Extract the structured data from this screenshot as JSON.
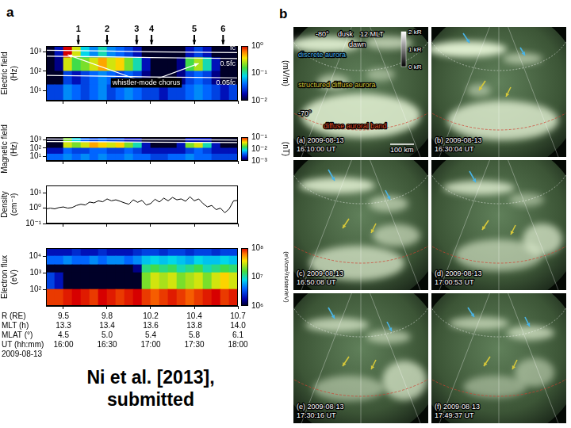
{
  "chart_data": [
    {
      "type": "spectrogram",
      "ylabel": [
        "Electric field",
        "(Hz)"
      ],
      "log": "y",
      "grid": false,
      "tick_labels": "y",
      "xlim": [
        15.8,
        18.0
      ],
      "xticks": [
        16,
        16.5,
        17,
        17.5,
        18
      ],
      "ylim": [
        3,
        2000
      ],
      "yticks": [
        {
          "value": 10,
          "label": "10¹"
        },
        {
          "value": 100,
          "label": "10²"
        },
        {
          "value": 1000,
          "label": "10³"
        }
      ],
      "x_edges": [
        15.8,
        15.9,
        16.0,
        16.1,
        16.2,
        16.3,
        16.4,
        16.5,
        16.6,
        16.7,
        16.8,
        16.9,
        17.0,
        17.1,
        17.2,
        17.3,
        17.4,
        17.5,
        17.6,
        17.7,
        17.8,
        17.9,
        18.0
      ],
      "y_edges": [
        3,
        20,
        100,
        500,
        2000
      ],
      "cells": [
        [
          0.03,
          0.03,
          0.05,
          0.04,
          0.03,
          0.04,
          0.05,
          0.03,
          0.04,
          0.05,
          0.04,
          0.03,
          0.03,
          0.02,
          0.03,
          0.03,
          0.04,
          0.05,
          0.04,
          0.03,
          0.02,
          0.03
        ],
        [
          0.01,
          0.01,
          0.03,
          0.02,
          0.03,
          0.04,
          0.05,
          0.04,
          0.03,
          0.04,
          0.03,
          0.015,
          0.01,
          0.01,
          0.01,
          0.015,
          0.03,
          0.04,
          0.03,
          0.015,
          0.01,
          0.01
        ],
        [
          0.01,
          0.015,
          0.3,
          0.15,
          0.2,
          0.3,
          0.5,
          0.3,
          0.4,
          0.2,
          0.1,
          0.02,
          0.01,
          0.01,
          0.01,
          0.015,
          0.15,
          0.25,
          0.1,
          0.02,
          0.01,
          0.01
        ],
        [
          0.01,
          0.02,
          1,
          0.3,
          0.08,
          0.05,
          0.1,
          0.05,
          0.04,
          0.03,
          0.02,
          0.01,
          0.01,
          0.01,
          0.01,
          0.01,
          0.02,
          0.03,
          0.02,
          0.01,
          0.01,
          0.01
        ]
      ],
      "colorbar": {
        "label": "(mV/m)",
        "lim": [
          0.01,
          1
        ],
        "ticks": [
          {
            "value": 0.01,
            "label": "10⁻²"
          },
          {
            "value": 0.1,
            "label": "10⁻¹"
          },
          {
            "value": 1,
            "label": "10⁰"
          }
        ]
      },
      "lines": [
        {
          "name": "fc",
          "color": "#ffffff",
          "x": [
            15.8,
            16.5,
            17.0,
            17.5,
            18.0
          ],
          "values": [
            1200,
            1100,
            1000,
            950,
            900
          ]
        },
        {
          "name": "0.5fc",
          "color": "#ffffff",
          "x": [
            15.8,
            16.5,
            17.0,
            17.5,
            18.0
          ],
          "values": [
            600,
            550,
            500,
            475,
            450
          ]
        },
        {
          "name": "0.05fc",
          "color": "#ffffff",
          "x": [
            15.8,
            16.5,
            17.0,
            17.5,
            18.0
          ],
          "values": [
            60,
            55,
            50,
            47.5,
            45
          ]
        }
      ],
      "annotations": [
        {
          "text": "whistler-mode chorus",
          "x": 16.95,
          "y": 25,
          "color": "#ffffff",
          "arrows": [
            {
              "x": 16.05,
              "y": 700
            },
            {
              "x": 17.55,
              "y": 250
            }
          ]
        }
      ]
    },
    {
      "type": "spectrogram",
      "ylabel": [
        "Magnetic field",
        "(Hz)"
      ],
      "log": "y",
      "grid": false,
      "tick_labels": "y",
      "xlim": [
        15.8,
        18.0
      ],
      "xticks": [
        16,
        16.5,
        17,
        17.5,
        18
      ],
      "ylim": [
        3,
        2000
      ],
      "yticks": [
        {
          "value": 10,
          "label": "10¹"
        },
        {
          "value": 100,
          "label": "10²"
        },
        {
          "value": 1000,
          "label": "10³"
        }
      ],
      "x_edges": [
        15.8,
        15.9,
        16.0,
        16.1,
        16.2,
        16.3,
        16.4,
        16.5,
        16.6,
        16.7,
        16.8,
        16.9,
        17.0,
        17.1,
        17.2,
        17.3,
        17.4,
        17.5,
        17.6,
        17.7,
        17.8,
        17.9,
        18.0
      ],
      "y_edges": [
        3,
        20,
        100,
        500,
        2000
      ],
      "cells": [
        [
          0.004,
          0.004,
          0.005,
          0.004,
          0.005,
          0.004,
          0.005,
          0.004,
          0.004,
          0.005,
          0.004,
          0.004,
          0.003,
          0.003,
          0.004,
          0.004,
          0.005,
          0.004,
          0.004,
          0.003,
          0.003,
          0.003
        ],
        [
          0.002,
          0.002,
          0.004,
          0.003,
          0.003,
          0.004,
          0.004,
          0.003,
          0.003,
          0.004,
          0.003,
          0.002,
          0.002,
          0.002,
          0.002,
          0.002,
          0.003,
          0.004,
          0.003,
          0.002,
          0.002,
          0.002
        ],
        [
          0.001,
          0.001,
          0.03,
          0.02,
          0.03,
          0.05,
          0.04,
          0.03,
          0.04,
          0.02,
          0.01,
          0.002,
          0.001,
          0.001,
          0.001,
          0.002,
          0.02,
          0.03,
          0.01,
          0.002,
          0.001,
          0.001
        ],
        [
          0.001,
          0.001,
          0.02,
          0.008,
          0.004,
          0.003,
          0.004,
          0.003,
          0.003,
          0.002,
          0.002,
          0.001,
          0.001,
          0.001,
          0.001,
          0.001,
          0.002,
          0.002,
          0.002,
          0.001,
          0.001,
          0.001
        ]
      ],
      "colorbar": {
        "label": "(nT)",
        "lim": [
          0.001,
          0.1
        ],
        "ticks": [
          {
            "value": 0.001,
            "label": "10⁻³"
          },
          {
            "value": 0.01,
            "label": "10⁻²"
          },
          {
            "value": 0.1,
            "label": "10⁻¹"
          }
        ]
      },
      "lines": [
        {
          "color": "#ffffff",
          "x": [
            15.8,
            16.5,
            17.0,
            17.5,
            18.0
          ],
          "values": [
            1200,
            1100,
            1000,
            950,
            900
          ]
        },
        {
          "color": "#ffffff",
          "x": [
            15.8,
            16.5,
            17.0,
            17.5,
            18.0
          ],
          "values": [
            600,
            550,
            500,
            475,
            450
          ]
        }
      ]
    },
    {
      "type": "line",
      "ylabel": [
        "Density",
        "(cm⁻³)"
      ],
      "log": "y",
      "grid": false,
      "tick_labels": "y",
      "color": "#000000",
      "xlim": [
        15.8,
        18.0
      ],
      "xticks": [
        16,
        16.5,
        17,
        17.5,
        18
      ],
      "ylim": [
        0.1,
        30
      ],
      "yticks": [
        {
          "value": 0.1,
          "label": "10⁻¹"
        },
        {
          "value": 1,
          "label": "10⁰"
        },
        {
          "value": 10,
          "label": "10¹"
        }
      ],
      "x": [
        15.8,
        15.85,
        15.9,
        15.95,
        16.0,
        16.05,
        16.1,
        16.15,
        16.2,
        16.25,
        16.3,
        16.35,
        16.4,
        16.45,
        16.5,
        16.55,
        16.6,
        16.65,
        16.7,
        16.75,
        16.8,
        16.85,
        16.9,
        16.95,
        17.0,
        17.05,
        17.1,
        17.15,
        17.2,
        17.25,
        17.3,
        17.35,
        17.4,
        17.45,
        17.5,
        17.55,
        17.6,
        17.65,
        17.7,
        17.75,
        17.8,
        17.85,
        17.9,
        17.95,
        18.0
      ],
      "values": [
        0.9,
        1.0,
        0.9,
        1.1,
        1.2,
        1.0,
        1.1,
        1.5,
        1.8,
        1.6,
        2.5,
        2.2,
        3.0,
        2.6,
        4.0,
        3.0,
        3.5,
        2.8,
        2.2,
        1.8,
        3.5,
        2.4,
        3.2,
        1.6,
        2.0,
        3.8,
        2.5,
        4.5,
        3.0,
        5.0,
        3.5,
        4.0,
        2.8,
        5.5,
        3.0,
        4.0,
        2.0,
        1.2,
        1.5,
        0.8,
        1.0,
        0.5,
        0.9,
        3.0,
        3.2
      ]
    },
    {
      "type": "spectrogram",
      "ylabel": [
        "Electron flux",
        "(eV)"
      ],
      "log": "y",
      "grid": false,
      "tick_labels": "y",
      "xlim": [
        15.8,
        18.0
      ],
      "xticks": [
        16,
        16.5,
        17,
        17.5,
        18
      ],
      "ylim": [
        10,
        30000
      ],
      "yticks": [
        {
          "value": 100,
          "label": "10²"
        },
        {
          "value": 1000,
          "label": "10³"
        },
        {
          "value": 10000,
          "label": "10⁴"
        }
      ],
      "x_edges": [
        15.8,
        15.9,
        16.0,
        16.1,
        16.2,
        16.3,
        16.4,
        16.5,
        16.6,
        16.7,
        16.8,
        16.9,
        17.0,
        17.1,
        17.2,
        17.3,
        17.4,
        17.5,
        17.6,
        17.7,
        17.8,
        17.9,
        18.0
      ],
      "y_edges": [
        10,
        100,
        1000,
        3000,
        10000,
        30000
      ],
      "cells": [
        [
          80000000.0,
          80000000.0,
          90000000.0,
          100000000.0,
          90000000.0,
          80000000.0,
          100000000.0,
          90000000.0,
          80000000.0,
          90000000.0,
          100000000.0,
          80000000.0,
          70000000.0,
          80000000.0,
          90000000.0,
          80000000.0,
          70000000.0,
          80000000.0,
          90000000.0,
          100000000.0,
          80000000.0,
          90000000.0
        ],
        [
          3000000.0,
          2000000.0,
          500000.0,
          400000.0,
          500000.0,
          400000.0,
          300000.0,
          400000.0,
          500000.0,
          600000.0,
          800000.0,
          20000000.0,
          30000000.0,
          25000000.0,
          30000000.0,
          20000000.0,
          25000000.0,
          30000000.0,
          20000000.0,
          30000000.0,
          40000000.0,
          30000000.0
        ],
        [
          1000000.0,
          1000000.0,
          700000.0,
          600000.0,
          700000.0,
          800000.0,
          600000.0,
          700000.0,
          800000.0,
          900000.0,
          1500000.0,
          12000000.0,
          15000000.0,
          12000000.0,
          14000000.0,
          10000000.0,
          12000000.0,
          15000000.0,
          10000000.0,
          12000000.0,
          15000000.0,
          13000000.0
        ],
        [
          4000000.0,
          4000000.0,
          5000000.0,
          4000000.0,
          4000000.0,
          5000000.0,
          4000000.0,
          5000000.0,
          5000000.0,
          4000000.0,
          5000000.0,
          7000000.0,
          8000000.0,
          7000000.0,
          8000000.0,
          7000000.0,
          6000000.0,
          8000000.0,
          7000000.0,
          7000000.0,
          8000000.0,
          7000000.0
        ],
        [
          2000000.0,
          2000000.0,
          2000000.0,
          2500000.0,
          2000000.0,
          2000000.0,
          2500000.0,
          2000000.0,
          2000000.0,
          2000000.0,
          2500000.0,
          3000000.0,
          3000000.0,
          2500000.0,
          3000000.0,
          3000000.0,
          2500000.0,
          3000000.0,
          3000000.0,
          2500000.0,
          3000000.0,
          3000000.0
        ]
      ],
      "colorbar": {
        "label": "(eV/cm²/s/ster/eV)",
        "lim": [
          1000000.0,
          100000000.0
        ],
        "ticks": [
          {
            "value": 1000000.0,
            "label": "10⁶"
          },
          {
            "value": 10000000.0,
            "label": "10⁷"
          },
          {
            "value": 100000000.0,
            "label": "10⁸"
          }
        ]
      }
    }
  ],
  "panel_a": {
    "label": "a",
    "markers": [
      {
        "label": "1",
        "x": 16.17
      },
      {
        "label": "2",
        "x": 16.5
      },
      {
        "label": "3",
        "x": 16.84
      },
      {
        "label": "4",
        "x": 17.01
      },
      {
        "label": "5",
        "x": 17.5
      },
      {
        "label": "6",
        "x": 17.83
      }
    ],
    "ephemeris": {
      "rows": [
        {
          "label": "R (RE)",
          "values": [
            "9.5",
            "9.8",
            "10.2",
            "10.4",
            "10.7"
          ]
        },
        {
          "label": "MLT (h)",
          "values": [
            "13.3",
            "13.4",
            "13.6",
            "13.8",
            "14.0"
          ]
        },
        {
          "label": "MLAT (°)",
          "values": [
            "4.5",
            "5.0",
            "5.4",
            "5.8",
            "6.1"
          ]
        },
        {
          "label": "UT (hh:mm)",
          "values": [
            "16:00",
            "16:30",
            "17:00",
            "17:30",
            "18:00"
          ]
        }
      ],
      "date": "2009-08-13"
    }
  },
  "citation": [
    "Ni et al. [2013],",
    "submitted"
  ],
  "panel_b": {
    "label": "b",
    "captions": [
      [
        "(a) 2009-08-13",
        "16:10:00 UT"
      ],
      [
        "(b) 2009-08-13",
        "16:30:04 UT"
      ],
      [
        "(c) 2009-08-13",
        "16:50:08 UT"
      ],
      [
        "(d) 2009-08-13",
        "17:00:53 UT"
      ],
      [
        "(e) 2009-08-13",
        "17:30:16 UT"
      ],
      [
        "(f) 2009-08-13",
        "17:49:37 UT"
      ]
    ],
    "annotations": [
      {
        "text": "-80°",
        "color": "#ffffff"
      },
      {
        "text": "dusk",
        "color": "#ffffff"
      },
      {
        "text": "12 MLT",
        "color": "#ffffff"
      },
      {
        "text": "dawn",
        "color": "#ffffff"
      },
      {
        "text": "discrete aurora",
        "color": "#4ab4e6"
      },
      {
        "text": "structured diffuse aurora",
        "color": "#d6c83a"
      },
      {
        "text": "diffuse auroral band",
        "color": "#e0502a"
      },
      {
        "text": "-70°",
        "color": "#ffffff"
      },
      {
        "text": "100 km",
        "color": "#ffffff"
      }
    ],
    "colorbar": {
      "lim": [
        0,
        2
      ],
      "ticks": [
        {
          "value": 2,
          "label": "2 kR"
        },
        {
          "value": 1,
          "label": "1 kR"
        },
        {
          "value": 0,
          "label": "0 kR"
        }
      ]
    }
  }
}
